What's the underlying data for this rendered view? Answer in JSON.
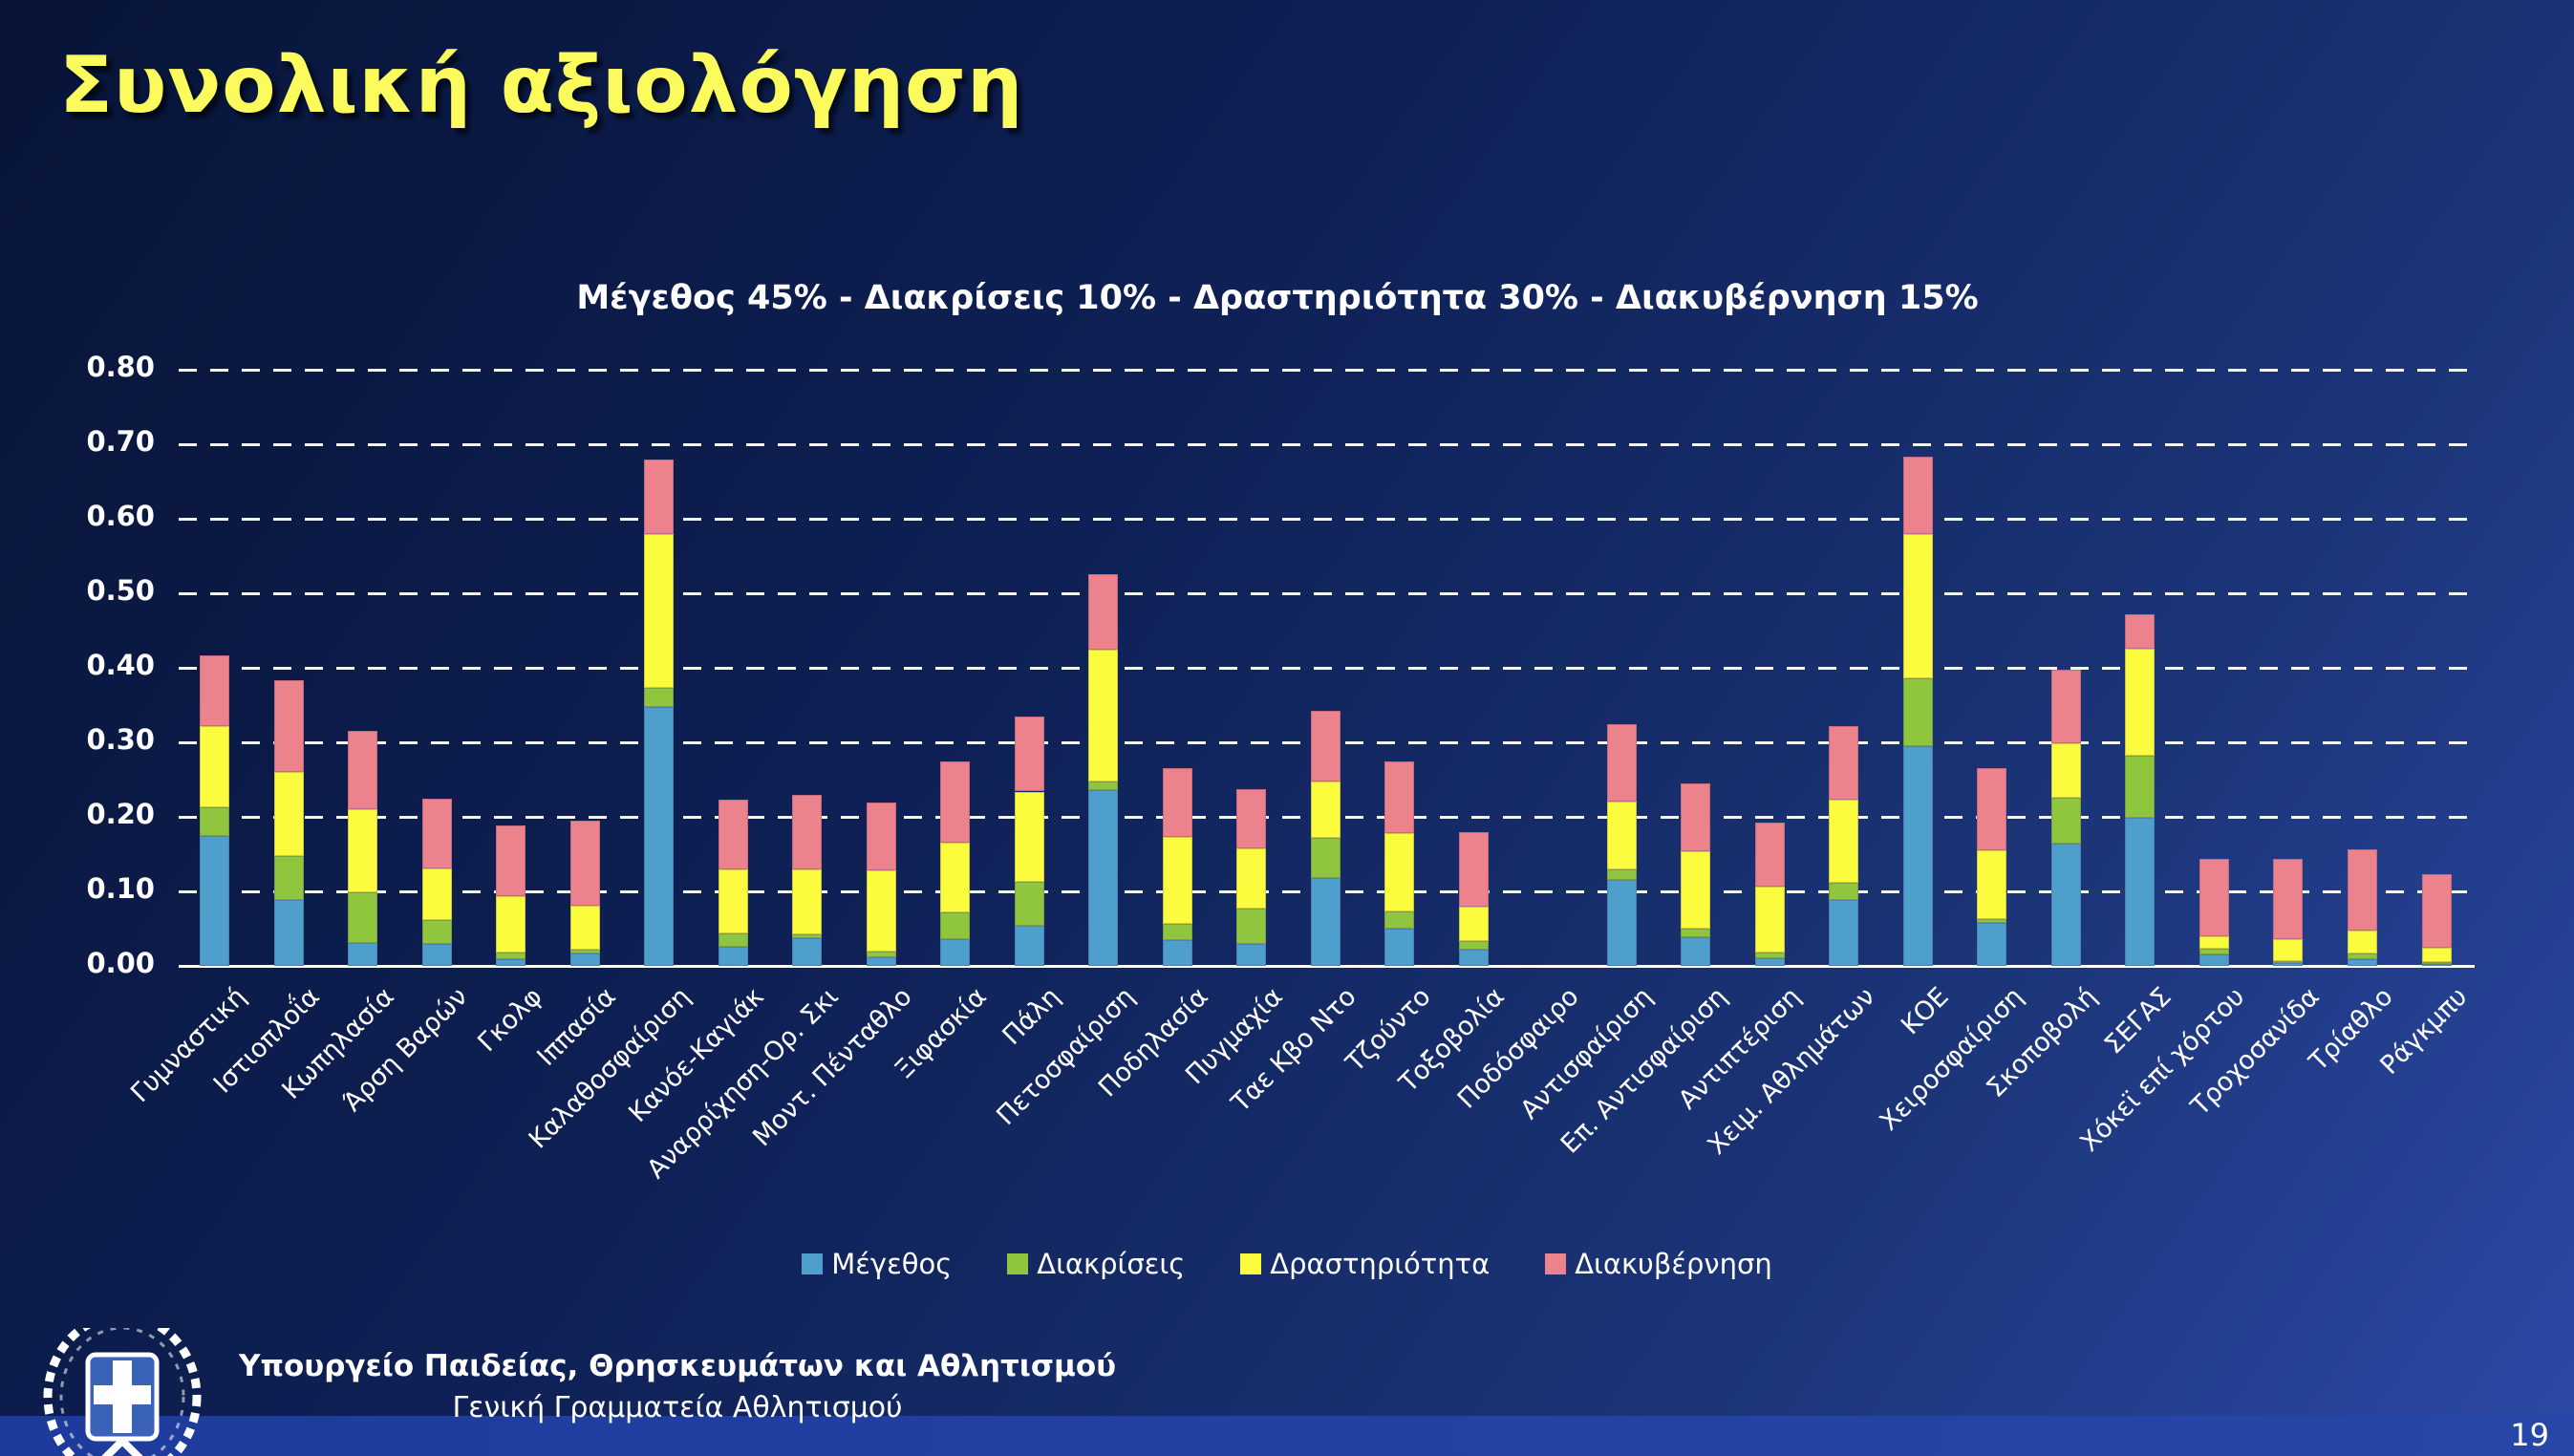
{
  "slide": {
    "title": "Συνολική αξιολόγηση",
    "page_number": "19",
    "footer": {
      "logo": "greek-coat-of-arms",
      "line1": "Υπουργείο Παιδείας, Θρησκευμάτων και Αθλητισμού",
      "line2": "Γενική Γραμματεία Αθλητισμού"
    },
    "colors": {
      "background_top": "#081437",
      "background_bottom": "#2c49a6",
      "title_yellow": "#FBFB5E",
      "footer_strip": "#1d3b9d"
    }
  },
  "chart_data": {
    "type": "bar",
    "stacked": true,
    "title": "Μέγεθος 45% - Διακρίσεις 10% - Δραστηριότητα 30% - Διακυβέρνηση 15%",
    "xlabel": "",
    "ylabel": "",
    "ylim": [
      0,
      0.8
    ],
    "ytick_step": 0.1,
    "ytick_labels_top_to_bottom": [
      "0.80",
      "0.70",
      "0.60",
      "0.50",
      "0.40",
      "0.30",
      "0.20",
      "0.10",
      "0.00"
    ],
    "grid": "horizontal-dashed-white",
    "legend_position": "bottom",
    "categories": [
      "Γυμναστική",
      "Ιστιοπλοΐα",
      "Κωπηλασία",
      "Άρση Βαρών",
      "Γκολφ",
      "Ιππασία",
      "Καλαθοσφαίριση",
      "Κανόε-Καγιάκ",
      "Αναρρίχηση-Ορ. Σκι",
      "Μοντ. Πένταθλο",
      "Ξιφασκία",
      "Πάλη",
      "Πετοσφαίριση",
      "Ποδηλασία",
      "Πυγμαχία",
      "Ταε Κβο Ντο",
      "Τζούντο",
      "Τοξοβολία",
      "Ποδόσφαιρο",
      "Αντισφαίριση",
      "Επ. Αντισφαίριση",
      "Αντιπτέριση",
      "Χειμ. Αθλημάτων",
      "ΚΟΕ",
      "Χειροσφαίριση",
      "Σκοποβολή",
      "ΣΕΓΑΣ",
      "Χόκεϊ επί χόρτου",
      "Τροχοσανίδα",
      "Τρίαθλο",
      "Ράγκμπυ"
    ],
    "series": [
      {
        "name": "Μέγεθος",
        "color": "#4E9FCB",
        "values": [
          0.175,
          0.088,
          0.031,
          0.03,
          0.009,
          0.017,
          0.348,
          0.026,
          0.037,
          0.011,
          0.036,
          0.054,
          0.236,
          0.035,
          0.03,
          0.118,
          0.05,
          0.022,
          0,
          0.116,
          0.039,
          0.01,
          0.089,
          0.295,
          0.058,
          0.164,
          0.199,
          0.016,
          0.004,
          0.009,
          0.002
        ]
      },
      {
        "name": "Διακρίσεις",
        "color": "#8FC63D",
        "values": [
          0.038,
          0.059,
          0.068,
          0.031,
          0.009,
          0.005,
          0.025,
          0.017,
          0.005,
          0.008,
          0.036,
          0.059,
          0.011,
          0.022,
          0.047,
          0.054,
          0.023,
          0.011,
          0,
          0.014,
          0.011,
          0.008,
          0.022,
          0.091,
          0.005,
          0.062,
          0.083,
          0.007,
          0.002,
          0.008,
          0.003
        ]
      },
      {
        "name": "Δραστηριότητα",
        "color": "#FCFC3E",
        "values": [
          0.109,
          0.113,
          0.111,
          0.07,
          0.075,
          0.059,
          0.206,
          0.086,
          0.088,
          0.109,
          0.093,
          0.121,
          0.178,
          0.116,
          0.081,
          0.075,
          0.105,
          0.047,
          0,
          0.09,
          0.104,
          0.088,
          0.112,
          0.193,
          0.092,
          0.073,
          0.144,
          0.017,
          0.03,
          0.031,
          0.02
        ]
      },
      {
        "name": "Διακυβέρνηση",
        "color": "#EC828B",
        "values": [
          0.095,
          0.123,
          0.106,
          0.093,
          0.096,
          0.114,
          0.101,
          0.094,
          0.099,
          0.091,
          0.109,
          0.101,
          0.101,
          0.092,
          0.079,
          0.095,
          0.097,
          0.1,
          0,
          0.105,
          0.091,
          0.086,
          0.099,
          0.105,
          0.11,
          0.099,
          0.046,
          0.103,
          0.108,
          0.108,
          0.098
        ]
      }
    ]
  }
}
